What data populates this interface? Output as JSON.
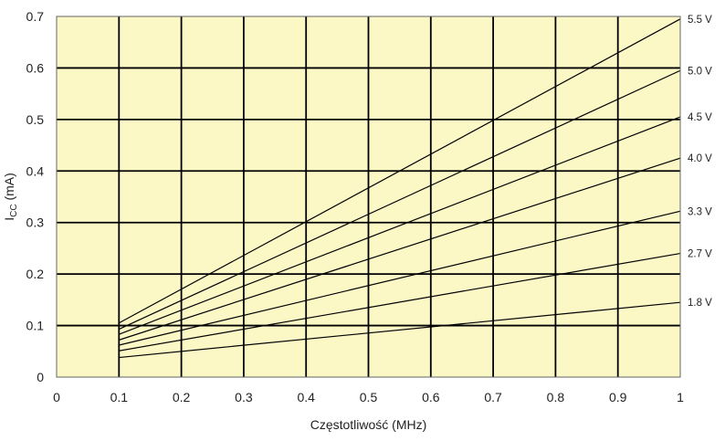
{
  "chart_data": {
    "type": "line",
    "title": "",
    "xlabel": "Częstotliwość (MHz)",
    "ylabel_main": "I",
    "ylabel_sub": "CC",
    "ylabel_tail": " (mA)",
    "xlim": [
      0,
      1
    ],
    "ylim": [
      0,
      0.7
    ],
    "xticks": [
      "0",
      "0.1",
      "0.2",
      "0.3",
      "0.4",
      "0.5",
      "0.6",
      "0.7",
      "0.8",
      "0.9",
      "1"
    ],
    "yticks": [
      "0",
      "0.1",
      "0.2",
      "0.3",
      "0.4",
      "0.5",
      "0.6",
      "0.7"
    ],
    "grid": true,
    "legend": "right-edge labels",
    "colors": {
      "plot_bg": "#fbf8c6",
      "grid": "#000000",
      "line": "#000000"
    },
    "series": [
      {
        "name": "5.5 V",
        "x": [
          0.1,
          1
        ],
        "y": [
          0.105,
          0.695
        ]
      },
      {
        "name": "5.0 V",
        "x": [
          0.1,
          1
        ],
        "y": [
          0.093,
          0.595
        ]
      },
      {
        "name": "4.5 V",
        "x": [
          0.1,
          1
        ],
        "y": [
          0.083,
          0.505
        ]
      },
      {
        "name": "4.0 V",
        "x": [
          0.1,
          1
        ],
        "y": [
          0.072,
          0.425
        ]
      },
      {
        "name": "3.3 V",
        "x": [
          0.1,
          1
        ],
        "y": [
          0.062,
          0.322
        ]
      },
      {
        "name": "2.7 V",
        "x": [
          0.1,
          1
        ],
        "y": [
          0.051,
          0.24
        ]
      },
      {
        "name": "1.8 V",
        "x": [
          0.1,
          1
        ],
        "y": [
          0.038,
          0.145
        ]
      }
    ],
    "series_label_y": [
      0.695,
      0.595,
      0.505,
      0.425,
      0.322,
      0.24,
      0.145
    ]
  }
}
